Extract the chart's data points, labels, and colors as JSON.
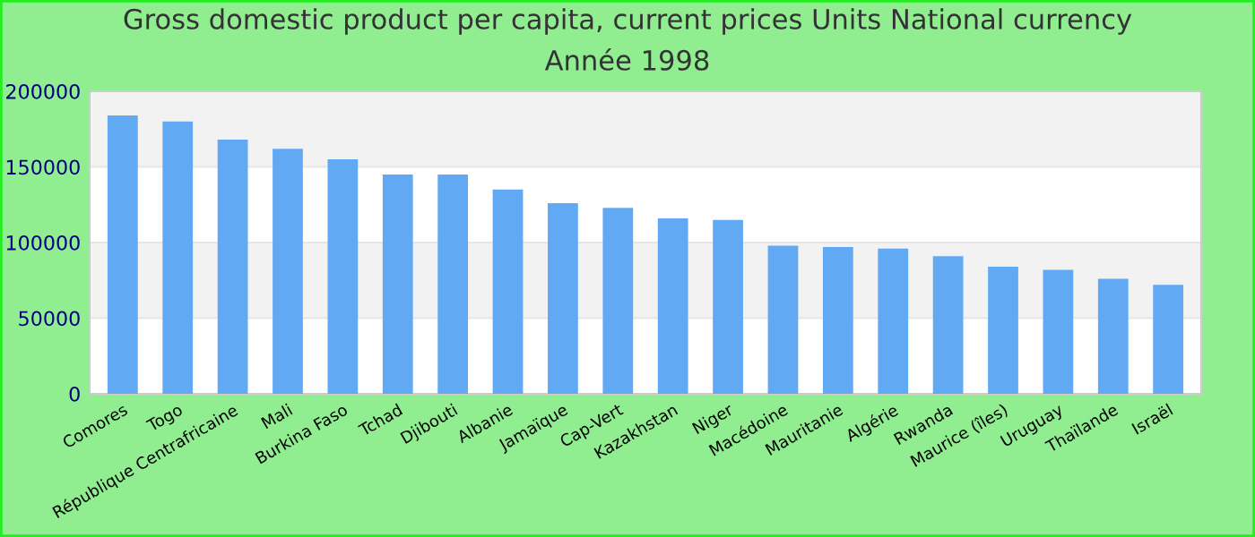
{
  "chart_data": {
    "type": "bar",
    "title": "Gross domestic product per capita, current prices Units National currency",
    "subtitle": "Année 1998",
    "categories": [
      "Comores",
      "Togo",
      "République Centrafricaine",
      "Mali",
      "Burkina Faso",
      "Tchad",
      "Djibouti",
      "Albanie",
      "Jamaïque",
      "Cap-Vert",
      "Kazakhstan",
      "Niger",
      "Macédoine",
      "Mauritanie",
      "Algérie",
      "Rwanda",
      "Maurice (îles)",
      "Uruguay",
      "Thaïlande",
      "Israël"
    ],
    "values": [
      184000,
      180000,
      168000,
      162000,
      155000,
      145000,
      145000,
      135000,
      126000,
      123000,
      116000,
      115000,
      98000,
      97000,
      96000,
      91000,
      84000,
      82000,
      76000,
      72000
    ],
    "color": "#62a9f4",
    "ylim": [
      0,
      200000
    ],
    "yticks": [
      0,
      50000,
      100000,
      150000,
      200000
    ],
    "grid": "y",
    "legend": false
  }
}
